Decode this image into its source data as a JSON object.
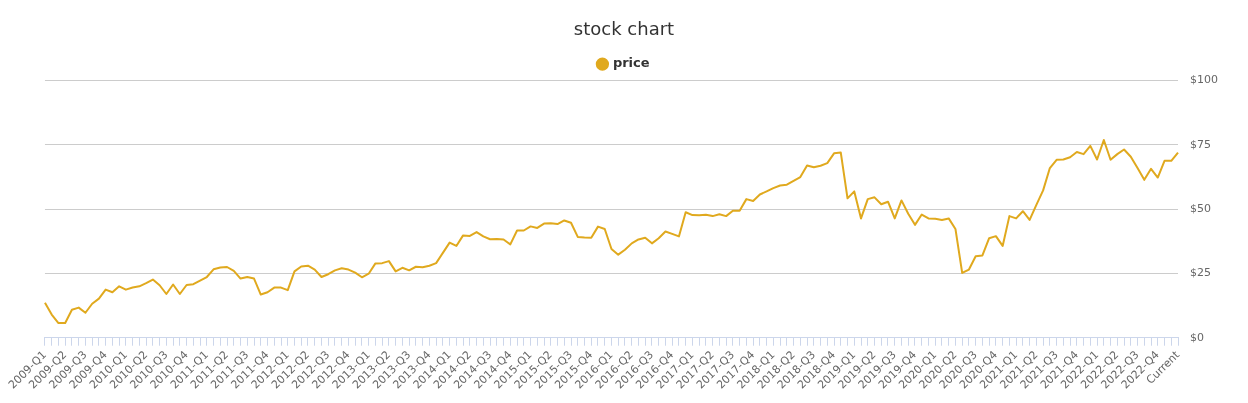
{
  "chart_data": {
    "type": "line",
    "title": "stock chart",
    "categories": [
      "2009-Q1",
      null,
      null,
      "2009-Q2",
      null,
      null,
      "2009-Q3",
      null,
      null,
      "2009-Q4",
      null,
      null,
      "2010-Q1",
      null,
      null,
      "2010-Q2",
      null,
      null,
      "2010-Q3",
      null,
      null,
      "2010-Q4",
      null,
      null,
      "2011-Q1",
      null,
      null,
      "2011-Q2",
      null,
      null,
      "2011-Q3",
      null,
      null,
      "2011-Q4",
      null,
      null,
      "2012-Q1",
      null,
      null,
      "2012-Q2",
      null,
      null,
      "2012-Q3",
      null,
      null,
      "2012-Q4",
      null,
      null,
      "2013-Q1",
      null,
      null,
      "2013-Q2",
      null,
      null,
      "2013-Q3",
      null,
      null,
      "2013-Q4",
      null,
      null,
      "2014-Q1",
      null,
      null,
      "2014-Q2",
      null,
      null,
      "2014-Q3",
      null,
      null,
      "2014-Q4",
      null,
      null,
      "2015-Q1",
      null,
      null,
      "2015-Q2",
      null,
      null,
      "2015-Q3",
      null,
      null,
      "2015-Q4",
      null,
      null,
      "2016-Q1",
      null,
      null,
      "2016-Q2",
      null,
      null,
      "2016-Q3",
      null,
      null,
      "2016-Q4",
      null,
      null,
      "2017-Q1",
      null,
      null,
      "2017-Q2",
      null,
      null,
      "2017-Q3",
      null,
      null,
      "2017-Q4",
      null,
      null,
      "2018-Q1",
      null,
      null,
      "2018-Q2",
      null,
      null,
      "2018-Q3",
      null,
      null,
      "2018-Q4",
      null,
      null,
      "2019-Q1",
      null,
      null,
      "2019-Q2",
      null,
      null,
      "2019-Q3",
      null,
      null,
      "2019-Q4",
      null,
      null,
      "2020-Q1",
      null,
      null,
      "2020-Q2",
      null,
      null,
      "2020-Q3",
      null,
      null,
      "2020-Q4",
      null,
      null,
      "2021-Q1",
      null,
      null,
      "2021-Q2",
      null,
      null,
      "2021-Q3",
      null,
      null,
      "2021-Q4",
      null,
      null,
      "2022-Q1",
      null,
      null,
      "2022-Q2",
      null,
      null,
      "2022-Q3",
      null,
      null,
      "2022-Q4",
      null,
      null,
      "Current"
    ],
    "series": [
      {
        "name": "price",
        "color": "#e0a91e",
        "values": [
          13.6,
          9,
          5.7,
          5.7,
          10.9,
          11.7,
          9.7,
          13.2,
          15.2,
          18.7,
          17.7,
          20,
          18.7,
          19.5,
          20,
          21.2,
          22.6,
          20.4,
          17,
          20.7,
          17,
          20.5,
          20.8,
          22.2,
          23.6,
          26.6,
          27.3,
          27.5,
          26,
          23,
          23.6,
          23,
          16.8,
          17.7,
          19.5,
          19.5,
          18.5,
          25.8,
          27.7,
          28,
          26.5,
          23.6,
          24.7,
          26.2,
          27,
          26.5,
          25.3,
          23.5,
          24.9,
          28.9,
          29,
          29.8,
          25.8,
          27.2,
          26.2,
          27.6,
          27.4,
          28,
          29,
          33,
          37,
          35.7,
          39.8,
          39.6,
          41.1,
          39.4,
          38.3,
          38.4,
          38.2,
          36.3,
          41.7,
          41.7,
          43.3,
          42.7,
          44.4,
          44.5,
          44.2,
          45.6,
          44.7,
          39.2,
          39,
          38.9,
          43.2,
          42.3,
          34.5,
          32.3,
          34.2,
          36.7,
          38.2,
          38.9,
          36.7,
          38.7,
          41.3,
          40.4,
          39.4,
          48.8,
          47.7,
          47.6,
          47.8,
          47.3,
          48,
          47.3,
          49.4,
          49.4,
          53.9,
          53.2,
          55.7,
          56.9,
          58.2,
          59.2,
          59.5,
          61,
          62.5,
          67,
          66.3,
          66.9,
          67.9,
          71.7,
          72,
          54.2,
          56.9,
          46.4,
          53.9,
          54.6,
          51.9,
          52.9,
          46.4,
          53.4,
          48.2,
          43.9,
          47.9,
          46.4,
          46.3,
          45.8,
          46.4,
          42.3,
          25.2,
          26.5,
          31.7,
          32,
          38.7,
          39.5,
          35.7,
          47.3,
          46.4,
          49.2,
          45.8,
          51.7,
          57.3,
          66,
          69.2,
          69.3,
          70.2,
          72.2,
          71.4,
          74.6,
          69.3,
          76.9,
          69.2,
          71.4,
          73.2,
          70.4,
          66,
          61.4,
          65.7,
          62.3,
          68.8,
          68.8,
          72
        ]
      }
    ],
    "ylim": [
      0,
      100
    ],
    "yticks": [
      {
        "value": 0,
        "label": "$0"
      },
      {
        "value": 25,
        "label": "$25"
      },
      {
        "value": 50,
        "label": "$50"
      },
      {
        "value": 75,
        "label": "$75"
      },
      {
        "value": 100,
        "label": "$100"
      }
    ],
    "grid": "y",
    "legend": "top"
  }
}
